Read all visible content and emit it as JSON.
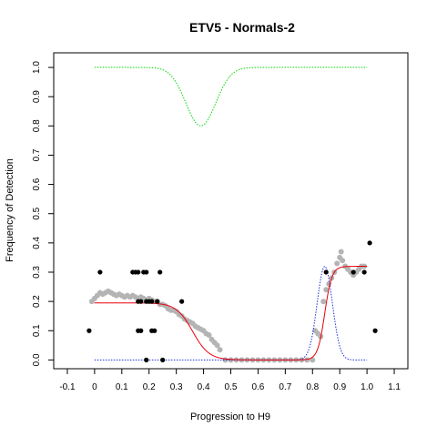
{
  "chart_data": {
    "type": "scatter",
    "title": "ETV5 - Normals-2",
    "xlabel": "Progression to H9",
    "ylabel": "Frequency of Detection",
    "xlim": [
      -0.15,
      1.15
    ],
    "ylim": [
      -0.03,
      1.05
    ],
    "x_ticks": [
      "-0.1",
      "0",
      "0.1",
      "0.2",
      "0.3",
      "0.4",
      "0.5",
      "0.6",
      "0.7",
      "0.8",
      "0.9",
      "1.0",
      "1.1"
    ],
    "y_ticks": [
      "0.0",
      "0.1",
      "0.2",
      "0.3",
      "0.4",
      "0.5",
      "0.6",
      "0.7",
      "0.8",
      "0.9",
      "1.0"
    ],
    "grid": false,
    "legend": "none",
    "colors": {
      "observed": "#000000",
      "smoothed": "#b4b4b4",
      "fit": "#e8000b",
      "green_curve": "#00d800",
      "blue_curve": "#1f2fd8"
    },
    "observed_points": [
      {
        "x": -0.02,
        "y": 0.1
      },
      {
        "x": 0.02,
        "y": 0.3
      },
      {
        "x": 0.14,
        "y": 0.3
      },
      {
        "x": 0.15,
        "y": 0.3
      },
      {
        "x": 0.16,
        "y": 0.3
      },
      {
        "x": 0.18,
        "y": 0.3
      },
      {
        "x": 0.19,
        "y": 0.3
      },
      {
        "x": 0.24,
        "y": 0.3
      },
      {
        "x": 0.16,
        "y": 0.2
      },
      {
        "x": 0.17,
        "y": 0.2
      },
      {
        "x": 0.19,
        "y": 0.2
      },
      {
        "x": 0.2,
        "y": 0.2
      },
      {
        "x": 0.21,
        "y": 0.2
      },
      {
        "x": 0.23,
        "y": 0.2
      },
      {
        "x": 0.32,
        "y": 0.2
      },
      {
        "x": 0.16,
        "y": 0.1
      },
      {
        "x": 0.17,
        "y": 0.1
      },
      {
        "x": 0.21,
        "y": 0.1
      },
      {
        "x": 0.22,
        "y": 0.1
      },
      {
        "x": 0.19,
        "y": 0.0
      },
      {
        "x": 0.25,
        "y": 0.0
      },
      {
        "x": 0.85,
        "y": 0.3
      },
      {
        "x": 0.95,
        "y": 0.3
      },
      {
        "x": 0.99,
        "y": 0.3
      },
      {
        "x": 1.01,
        "y": 0.4
      },
      {
        "x": 1.03,
        "y": 0.1
      }
    ],
    "smoothed_points": [
      [
        -0.01,
        0.2
      ],
      [
        0.0,
        0.21
      ],
      [
        0.01,
        0.22
      ],
      [
        0.02,
        0.23
      ],
      [
        0.03,
        0.225
      ],
      [
        0.04,
        0.23
      ],
      [
        0.05,
        0.235
      ],
      [
        0.06,
        0.23
      ],
      [
        0.07,
        0.225
      ],
      [
        0.08,
        0.22
      ],
      [
        0.09,
        0.225
      ],
      [
        0.1,
        0.22
      ],
      [
        0.11,
        0.215
      ],
      [
        0.12,
        0.22
      ],
      [
        0.13,
        0.215
      ],
      [
        0.14,
        0.22
      ],
      [
        0.15,
        0.215
      ],
      [
        0.16,
        0.21
      ],
      [
        0.17,
        0.215
      ],
      [
        0.18,
        0.21
      ],
      [
        0.19,
        0.205
      ],
      [
        0.2,
        0.21
      ],
      [
        0.21,
        0.205
      ],
      [
        0.22,
        0.2
      ],
      [
        0.23,
        0.2
      ],
      [
        0.24,
        0.19
      ],
      [
        0.25,
        0.19
      ],
      [
        0.26,
        0.185
      ],
      [
        0.27,
        0.175
      ],
      [
        0.28,
        0.17
      ],
      [
        0.29,
        0.17
      ],
      [
        0.3,
        0.165
      ],
      [
        0.31,
        0.155
      ],
      [
        0.32,
        0.15
      ],
      [
        0.33,
        0.14
      ],
      [
        0.34,
        0.135
      ],
      [
        0.35,
        0.13
      ],
      [
        0.36,
        0.125
      ],
      [
        0.37,
        0.115
      ],
      [
        0.38,
        0.11
      ],
      [
        0.39,
        0.105
      ],
      [
        0.4,
        0.1
      ],
      [
        0.41,
        0.09
      ],
      [
        0.42,
        0.085
      ],
      [
        0.43,
        0.07
      ],
      [
        0.44,
        0.06
      ],
      [
        0.45,
        0.05
      ],
      [
        0.46,
        0.035
      ],
      [
        0.48,
        0.0
      ],
      [
        0.5,
        0.0
      ],
      [
        0.52,
        0.0
      ],
      [
        0.54,
        0.0
      ],
      [
        0.56,
        0.0
      ],
      [
        0.58,
        0.0
      ],
      [
        0.6,
        0.0
      ],
      [
        0.62,
        0.0
      ],
      [
        0.64,
        0.0
      ],
      [
        0.66,
        0.0
      ],
      [
        0.68,
        0.0
      ],
      [
        0.7,
        0.0
      ],
      [
        0.72,
        0.0
      ],
      [
        0.74,
        0.0
      ],
      [
        0.76,
        0.0
      ],
      [
        0.78,
        0.0
      ],
      [
        0.8,
        0.0
      ],
      [
        0.81,
        0.1
      ],
      [
        0.82,
        0.09
      ],
      [
        0.83,
        0.08
      ],
      [
        0.84,
        0.2
      ],
      [
        0.85,
        0.24
      ],
      [
        0.86,
        0.26
      ],
      [
        0.87,
        0.28
      ],
      [
        0.88,
        0.3
      ],
      [
        0.89,
        0.33
      ],
      [
        0.9,
        0.35
      ],
      [
        0.905,
        0.37
      ],
      [
        0.91,
        0.34
      ],
      [
        0.92,
        0.32
      ],
      [
        0.93,
        0.31
      ],
      [
        0.94,
        0.3
      ],
      [
        0.95,
        0.29
      ],
      [
        0.96,
        0.3
      ],
      [
        0.97,
        0.31
      ],
      [
        0.98,
        0.32
      ],
      [
        0.99,
        0.32
      ]
    ],
    "fit_curve": {
      "plateau_low": 0.195,
      "fall_midpoint": 0.36,
      "fall_width": 0.03,
      "rise_midpoint": 0.845,
      "rise_width": 0.013,
      "plateau_high": 0.32,
      "x_range": [
        0.0,
        1.0
      ]
    },
    "green_curve": {
      "baseline": 1.0,
      "dip_depth": 0.2,
      "dip_center": 0.39,
      "dip_width": 0.055,
      "x_range": [
        0.0,
        1.0
      ]
    },
    "blue_curve": {
      "peak": 0.32,
      "center": 0.845,
      "width": 0.028,
      "x_range": [
        0.0,
        1.0
      ]
    }
  }
}
